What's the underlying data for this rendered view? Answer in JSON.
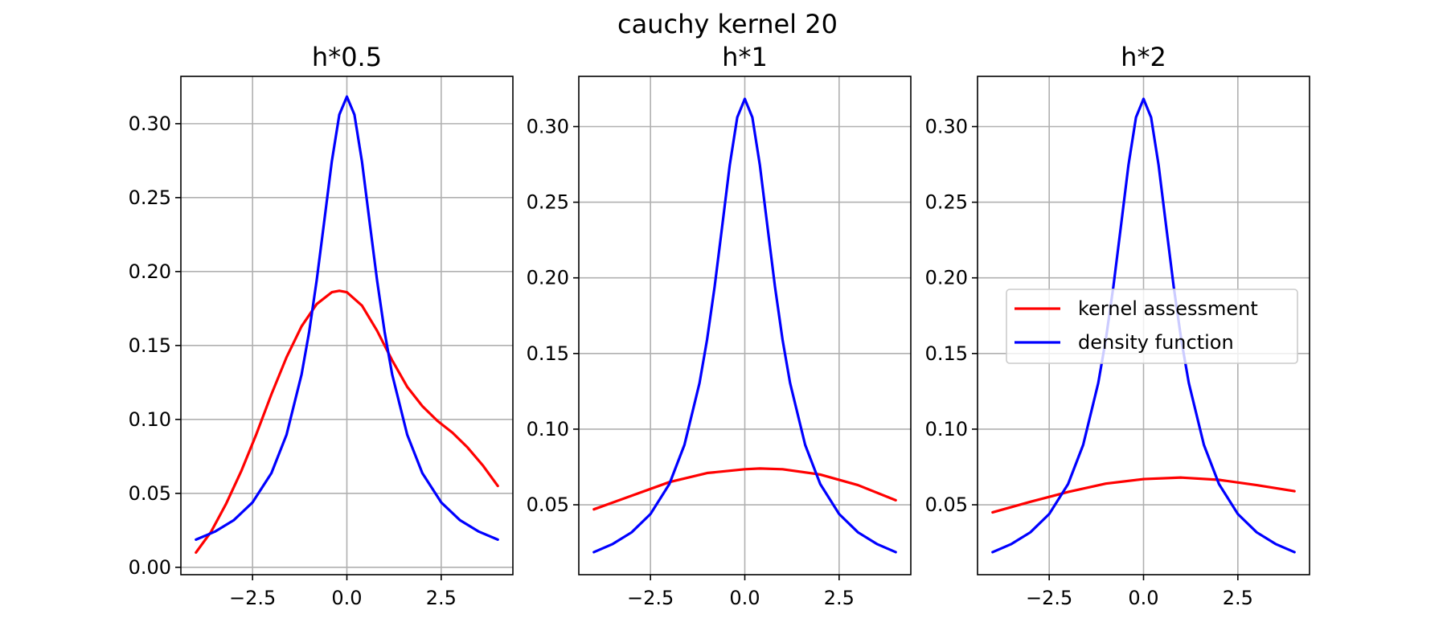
{
  "suptitle": "cauchy kernel 20",
  "chart_data": [
    {
      "type": "line",
      "title": "h*0.5",
      "xlabel": "",
      "ylabel": "",
      "xlim": [
        -4.4,
        4.4
      ],
      "ylim": [
        -0.005,
        0.332
      ],
      "grid": true,
      "xticks": [
        -2.5,
        0.0,
        2.5
      ],
      "xtick_labels": [
        "−2.5",
        "0.0",
        "2.5"
      ],
      "yticks": [
        0.0,
        0.05,
        0.1,
        0.15,
        0.2,
        0.25,
        0.3
      ],
      "ytick_labels": [
        "0.00",
        "0.05",
        "0.10",
        "0.15",
        "0.20",
        "0.25",
        "0.30"
      ],
      "series": [
        {
          "name": "kernel assessment",
          "color": "#ff0000",
          "x": [
            -4.0,
            -3.6,
            -3.2,
            -2.8,
            -2.4,
            -2.0,
            -1.6,
            -1.2,
            -0.8,
            -0.4,
            -0.2,
            0.0,
            0.4,
            0.8,
            1.2,
            1.6,
            2.0,
            2.4,
            2.8,
            3.2,
            3.6,
            4.0
          ],
          "y": [
            0.01,
            0.024,
            0.043,
            0.065,
            0.09,
            0.117,
            0.142,
            0.163,
            0.178,
            0.186,
            0.187,
            0.186,
            0.177,
            0.16,
            0.14,
            0.122,
            0.109,
            0.099,
            0.091,
            0.081,
            0.069,
            0.055
          ]
        },
        {
          "name": "density function",
          "color": "#0000ff",
          "x": [
            -4.0,
            -3.5,
            -3.0,
            -2.5,
            -2.0,
            -1.6,
            -1.2,
            -1.0,
            -0.8,
            -0.6,
            -0.4,
            -0.2,
            0.0,
            0.2,
            0.4,
            0.6,
            0.8,
            1.0,
            1.2,
            1.6,
            2.0,
            2.5,
            3.0,
            3.5,
            4.0
          ],
          "y": [
            0.0187,
            0.0241,
            0.0318,
            0.0439,
            0.0637,
            0.0896,
            0.1305,
            0.1592,
            0.1941,
            0.234,
            0.2744,
            0.3061,
            0.3183,
            0.3061,
            0.2744,
            0.234,
            0.1941,
            0.1592,
            0.1305,
            0.0896,
            0.0637,
            0.0439,
            0.0318,
            0.0241,
            0.0187
          ]
        }
      ]
    },
    {
      "type": "line",
      "title": "h*1",
      "xlabel": "",
      "ylabel": "",
      "xlim": [
        -4.4,
        4.4
      ],
      "ylim": [
        0.0038,
        0.3332
      ],
      "grid": true,
      "xticks": [
        -2.5,
        0.0,
        2.5
      ],
      "xtick_labels": [
        "−2.5",
        "0.0",
        "2.5"
      ],
      "yticks": [
        0.05,
        0.1,
        0.15,
        0.2,
        0.25,
        0.3
      ],
      "ytick_labels": [
        "0.05",
        "0.10",
        "0.15",
        "0.20",
        "0.25",
        "0.30"
      ],
      "series": [
        {
          "name": "kernel assessment",
          "color": "#ff0000",
          "x": [
            -4.0,
            -3.0,
            -2.0,
            -1.0,
            0.0,
            0.4,
            1.0,
            2.0,
            3.0,
            4.0
          ],
          "y": [
            0.047,
            0.056,
            0.065,
            0.071,
            0.0735,
            0.074,
            0.0735,
            0.07,
            0.063,
            0.053
          ]
        },
        {
          "name": "density function",
          "color": "#0000ff",
          "x": [
            -4.0,
            -3.5,
            -3.0,
            -2.5,
            -2.0,
            -1.6,
            -1.2,
            -1.0,
            -0.8,
            -0.6,
            -0.4,
            -0.2,
            0.0,
            0.2,
            0.4,
            0.6,
            0.8,
            1.0,
            1.2,
            1.6,
            2.0,
            2.5,
            3.0,
            3.5,
            4.0
          ],
          "y": [
            0.0187,
            0.0241,
            0.0318,
            0.0439,
            0.0637,
            0.0896,
            0.1305,
            0.1592,
            0.1941,
            0.234,
            0.2744,
            0.3061,
            0.3183,
            0.3061,
            0.2744,
            0.234,
            0.1941,
            0.1592,
            0.1305,
            0.0896,
            0.0637,
            0.0439,
            0.0318,
            0.0241,
            0.0187
          ]
        }
      ]
    },
    {
      "type": "line",
      "title": "h*2",
      "xlabel": "",
      "ylabel": "",
      "xlim": [
        -4.4,
        4.4
      ],
      "ylim": [
        0.0038,
        0.3332
      ],
      "grid": true,
      "legend_location": "right",
      "xticks": [
        -2.5,
        0.0,
        2.5
      ],
      "xtick_labels": [
        "−2.5",
        "0.0",
        "2.5"
      ],
      "yticks": [
        0.05,
        0.1,
        0.15,
        0.2,
        0.25,
        0.3
      ],
      "ytick_labels": [
        "0.05",
        "0.10",
        "0.15",
        "0.20",
        "0.25",
        "0.30"
      ],
      "series": [
        {
          "name": "kernel assessment",
          "color": "#ff0000",
          "x": [
            -4.0,
            -3.0,
            -2.0,
            -1.0,
            0.0,
            1.0,
            2.0,
            3.0,
            4.0
          ],
          "y": [
            0.045,
            0.052,
            0.0585,
            0.064,
            0.067,
            0.068,
            0.0665,
            0.063,
            0.059
          ]
        },
        {
          "name": "density function",
          "color": "#0000ff",
          "x": [
            -4.0,
            -3.5,
            -3.0,
            -2.5,
            -2.0,
            -1.6,
            -1.2,
            -1.0,
            -0.8,
            -0.6,
            -0.4,
            -0.2,
            0.0,
            0.2,
            0.4,
            0.6,
            0.8,
            1.0,
            1.2,
            1.6,
            2.0,
            2.5,
            3.0,
            3.5,
            4.0
          ],
          "y": [
            0.0187,
            0.0241,
            0.0318,
            0.0439,
            0.0637,
            0.0896,
            0.1305,
            0.1592,
            0.1941,
            0.234,
            0.2744,
            0.3061,
            0.3183,
            0.3061,
            0.2744,
            0.234,
            0.1941,
            0.1592,
            0.1305,
            0.0896,
            0.0637,
            0.0439,
            0.0318,
            0.0241,
            0.0187
          ]
        }
      ]
    }
  ]
}
